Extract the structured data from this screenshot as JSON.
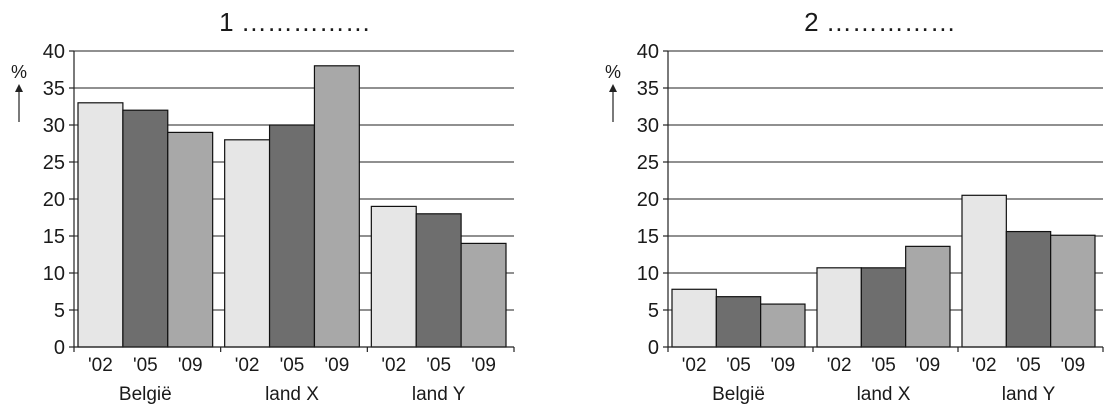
{
  "chart_data": [
    {
      "type": "bar",
      "title": "1 ……………",
      "ylabel": "%",
      "ylim": [
        0,
        40
      ],
      "yticks": [
        0,
        5,
        10,
        15,
        20,
        25,
        30,
        35,
        40
      ],
      "groups": [
        "België",
        "land X",
        "land Y"
      ],
      "categories": [
        "'02",
        "'05",
        "'09"
      ],
      "series": [
        {
          "values": [
            33,
            28,
            19
          ],
          "color": "#e6e6e6"
        },
        {
          "values": [
            32,
            30,
            18
          ],
          "color": "#6e6e6e"
        },
        {
          "values": [
            29,
            38,
            14
          ],
          "color": "#a8a8a8"
        }
      ],
      "grid": true
    },
    {
      "type": "bar",
      "title": "2 ……………",
      "ylabel": "%",
      "ylim": [
        0,
        40
      ],
      "yticks": [
        0,
        5,
        10,
        15,
        20,
        25,
        30,
        35,
        40
      ],
      "groups": [
        "België",
        "land X",
        "land Y"
      ],
      "categories": [
        "'02",
        "'05",
        "'09"
      ],
      "series": [
        {
          "values": [
            7.8,
            10.7,
            20.5
          ],
          "color": "#e6e6e6"
        },
        {
          "values": [
            6.8,
            10.7,
            15.6
          ],
          "color": "#6e6e6e"
        },
        {
          "values": [
            5.8,
            13.6,
            15.1
          ],
          "color": "#a8a8a8"
        }
      ],
      "grid": true
    }
  ]
}
